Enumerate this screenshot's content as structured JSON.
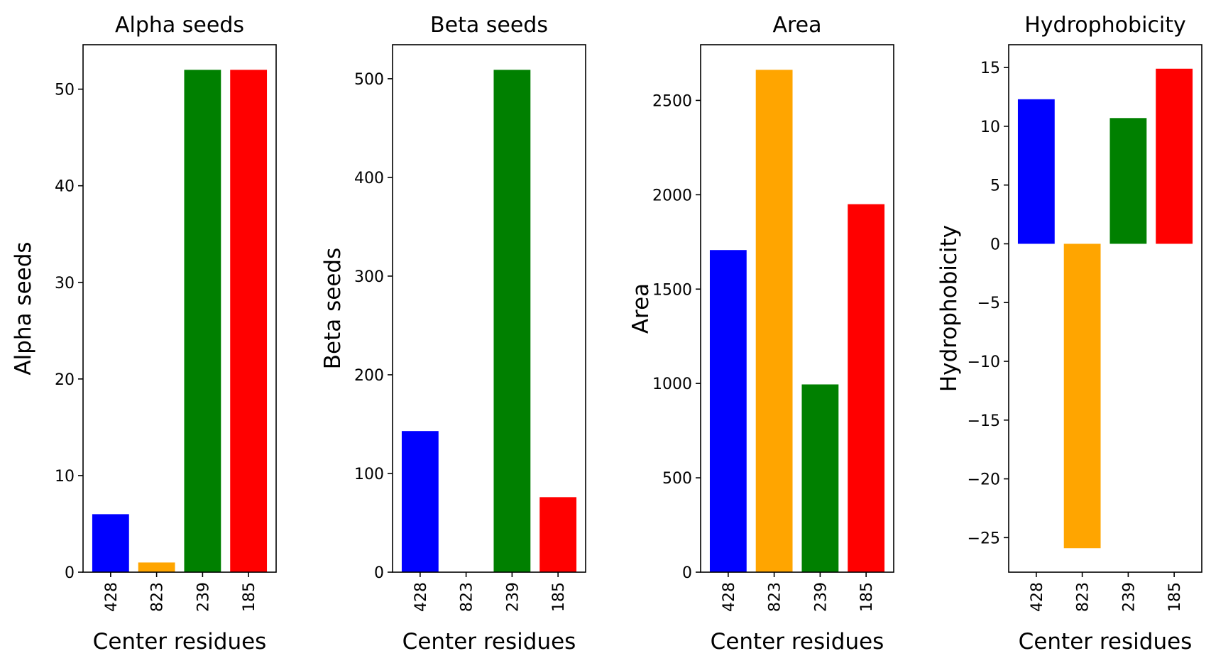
{
  "colors": {
    "blue": "#0000ff",
    "orange": "#ffa500",
    "green": "#008000",
    "red": "#ff0000"
  },
  "chart_data": [
    {
      "type": "bar",
      "title": "Alpha seeds",
      "xlabel": "Center residues",
      "ylabel": "Alpha seeds",
      "categories": [
        "428",
        "823",
        "239",
        "185"
      ],
      "values": [
        6,
        1,
        52,
        52
      ],
      "bar_colors": [
        "#0000ff",
        "#ffa500",
        "#008000",
        "#ff0000"
      ],
      "ylim": [
        0,
        54.6
      ],
      "yticks": [
        0,
        10,
        20,
        30,
        40,
        50
      ],
      "grid": false
    },
    {
      "type": "bar",
      "title": "Beta seeds",
      "xlabel": "Center residues",
      "ylabel": "Beta seeds",
      "categories": [
        "428",
        "823",
        "239",
        "185"
      ],
      "values": [
        143,
        0,
        509,
        76
      ],
      "bar_colors": [
        "#0000ff",
        "#ffa500",
        "#008000",
        "#ff0000"
      ],
      "ylim": [
        0,
        534.45
      ],
      "yticks": [
        0,
        100,
        200,
        300,
        400,
        500
      ],
      "grid": false
    },
    {
      "type": "bar",
      "title": "Area",
      "xlabel": "Center residues",
      "ylabel": "Area",
      "categories": [
        "428",
        "823",
        "239",
        "185"
      ],
      "values": [
        1707,
        2662,
        995,
        1950
      ],
      "bar_colors": [
        "#0000ff",
        "#ffa500",
        "#008000",
        "#ff0000"
      ],
      "ylim": [
        0,
        2795
      ],
      "yticks": [
        0,
        500,
        1000,
        1500,
        2000,
        2500
      ],
      "grid": false
    },
    {
      "type": "bar",
      "title": "Hydrophobicity",
      "xlabel": "Center residues",
      "ylabel": "Hydrophobicity",
      "categories": [
        "428",
        "823",
        "239",
        "185"
      ],
      "values": [
        12.3,
        -25.9,
        10.7,
        14.9
      ],
      "bar_colors": [
        "#0000ff",
        "#ffa500",
        "#008000",
        "#ff0000"
      ],
      "ylim": [
        -27.94,
        16.94
      ],
      "yticks": [
        -25,
        -20,
        -15,
        -10,
        -5,
        0,
        5,
        10,
        15
      ],
      "grid": false
    }
  ]
}
